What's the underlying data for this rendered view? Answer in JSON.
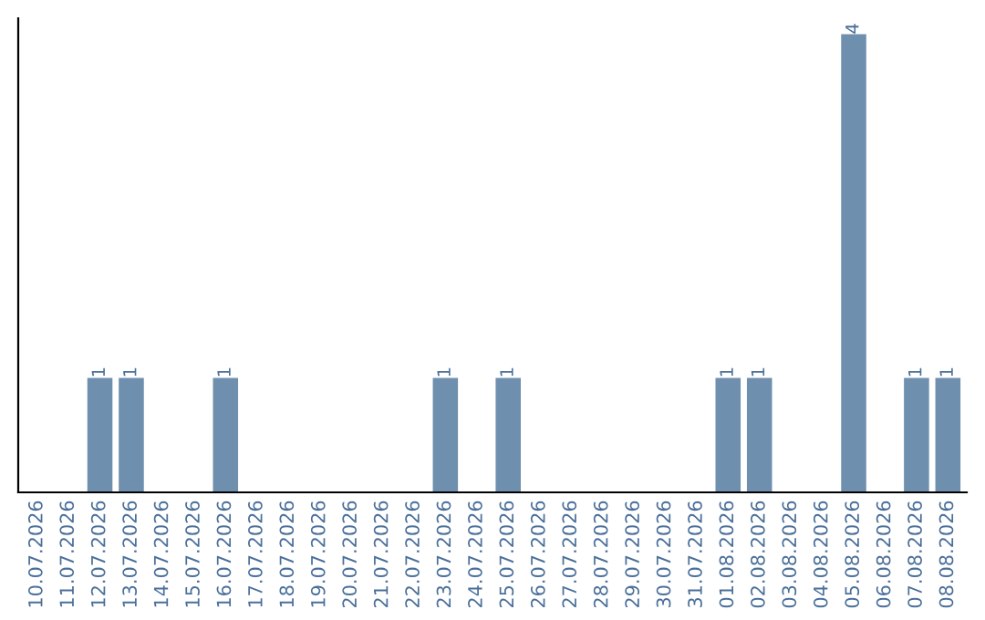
{
  "chart_data": {
    "type": "bar",
    "categories": [
      "10.07.2026",
      "11.07.2026",
      "12.07.2026",
      "13.07.2026",
      "14.07.2026",
      "15.07.2026",
      "16.07.2026",
      "17.07.2026",
      "18.07.2026",
      "19.07.2026",
      "20.07.2026",
      "21.07.2026",
      "22.07.2026",
      "23.07.2026",
      "24.07.2026",
      "25.07.2026",
      "26.07.2026",
      "27.07.2026",
      "28.07.2026",
      "29.07.2026",
      "30.07.2026",
      "31.07.2026",
      "01.08.2026",
      "02.08.2026",
      "03.08.2026",
      "04.08.2026",
      "05.08.2026",
      "06.08.2026",
      "07.08.2026",
      "08.08.2026"
    ],
    "values": [
      0,
      0,
      1,
      1,
      0,
      0,
      1,
      0,
      0,
      0,
      0,
      0,
      0,
      1,
      0,
      1,
      0,
      0,
      0,
      0,
      0,
      0,
      1,
      1,
      0,
      0,
      4,
      0,
      1,
      1
    ],
    "value_labels": [
      null,
      null,
      "1",
      "1",
      null,
      null,
      "1",
      null,
      null,
      null,
      null,
      null,
      null,
      "1",
      null,
      "1",
      null,
      null,
      null,
      null,
      null,
      null,
      "1",
      "1",
      null,
      null,
      "4",
      null,
      "1",
      "1"
    ],
    "color": "#6e8fad",
    "grid": false,
    "legend": false
  }
}
